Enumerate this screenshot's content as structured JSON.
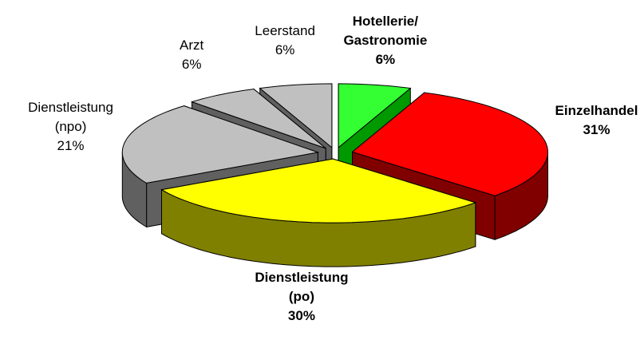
{
  "chart_data": {
    "type": "pie3d",
    "categories": [
      "Hotellerie/\nGastronomie",
      "Einzelhandel",
      "Dienstleistung\n(po)",
      "Dienstleistung\n(npo)",
      "Arzt",
      "Leerstand"
    ],
    "values": [
      6,
      31,
      30,
      21,
      6,
      6
    ],
    "value_labels": [
      "6%",
      "31%",
      "30%",
      "21%",
      "6%",
      "6%"
    ],
    "colors": [
      "#33ff33",
      "#ff0000",
      "#ffff00",
      "#c0c0c0",
      "#c0c0c0",
      "#c0c0c0"
    ],
    "side_colors": [
      "#009900",
      "#800000",
      "#808000",
      "#606060",
      "#606060",
      "#606060"
    ],
    "label_bold": [
      true,
      true,
      true,
      false,
      false,
      false
    ]
  }
}
